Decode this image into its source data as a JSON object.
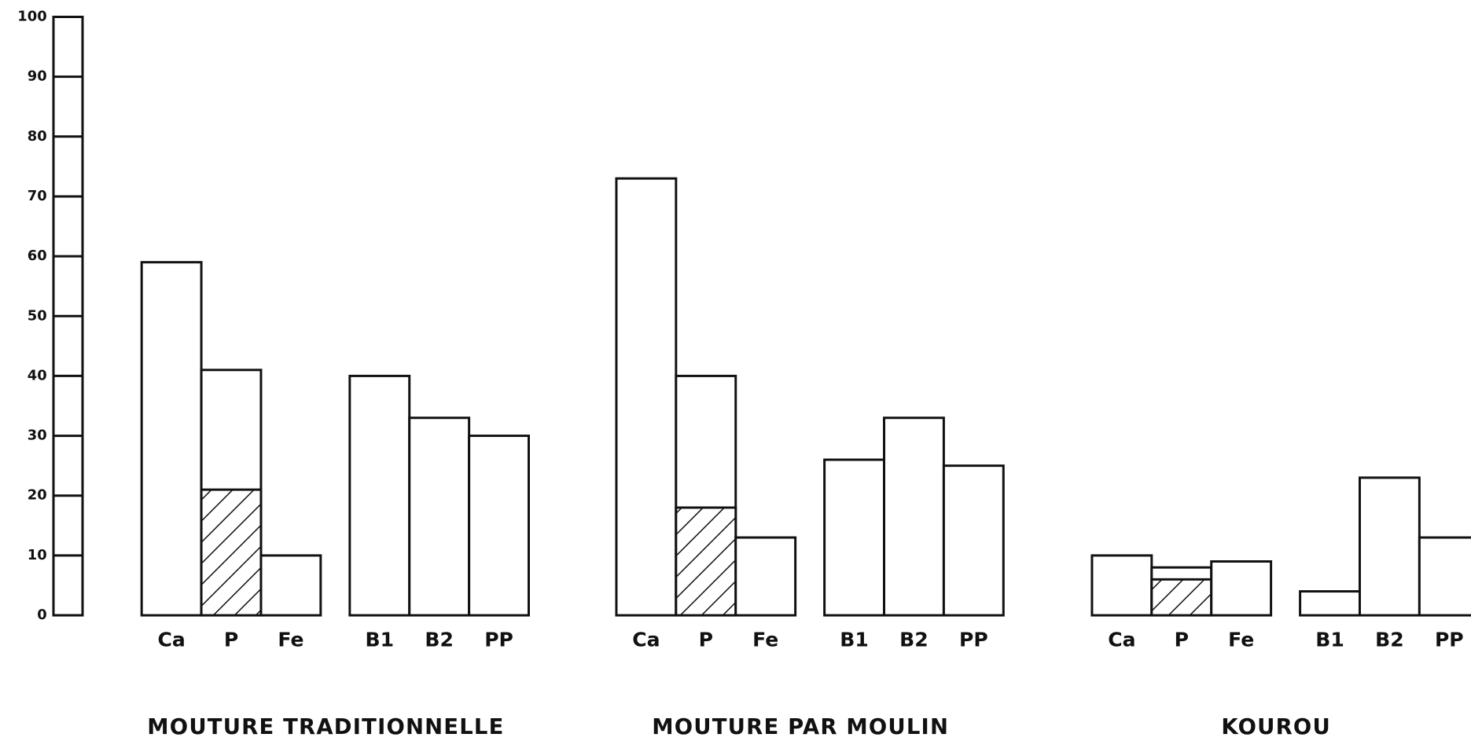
{
  "chart_data": {
    "type": "bar",
    "ylim": [
      0,
      100
    ],
    "yticks": [
      0,
      10,
      20,
      30,
      40,
      50,
      60,
      70,
      80,
      90,
      100
    ],
    "color": "#ffffff",
    "groups": [
      {
        "name": "MOUTURE TRADITIONNELLE",
        "categories": [
          "Ca",
          "P",
          "Fe",
          "B1",
          "B2",
          "PP"
        ],
        "values": [
          59,
          41,
          10,
          40,
          33,
          30
        ],
        "hatched": [
          null,
          21,
          null,
          null,
          null,
          null
        ]
      },
      {
        "name": "MOUTURE PAR MOULIN",
        "categories": [
          "Ca",
          "P",
          "Fe",
          "B1",
          "B2",
          "PP"
        ],
        "values": [
          73,
          40,
          13,
          26,
          33,
          25
        ],
        "hatched": [
          null,
          18,
          null,
          null,
          null,
          null
        ]
      },
      {
        "name": "KOUROU",
        "categories": [
          "Ca",
          "P",
          "Fe",
          "B1",
          "B2",
          "PP"
        ],
        "values": [
          10,
          8,
          9,
          4,
          23,
          13
        ],
        "hatched": [
          null,
          6,
          null,
          null,
          null,
          null
        ]
      }
    ]
  }
}
